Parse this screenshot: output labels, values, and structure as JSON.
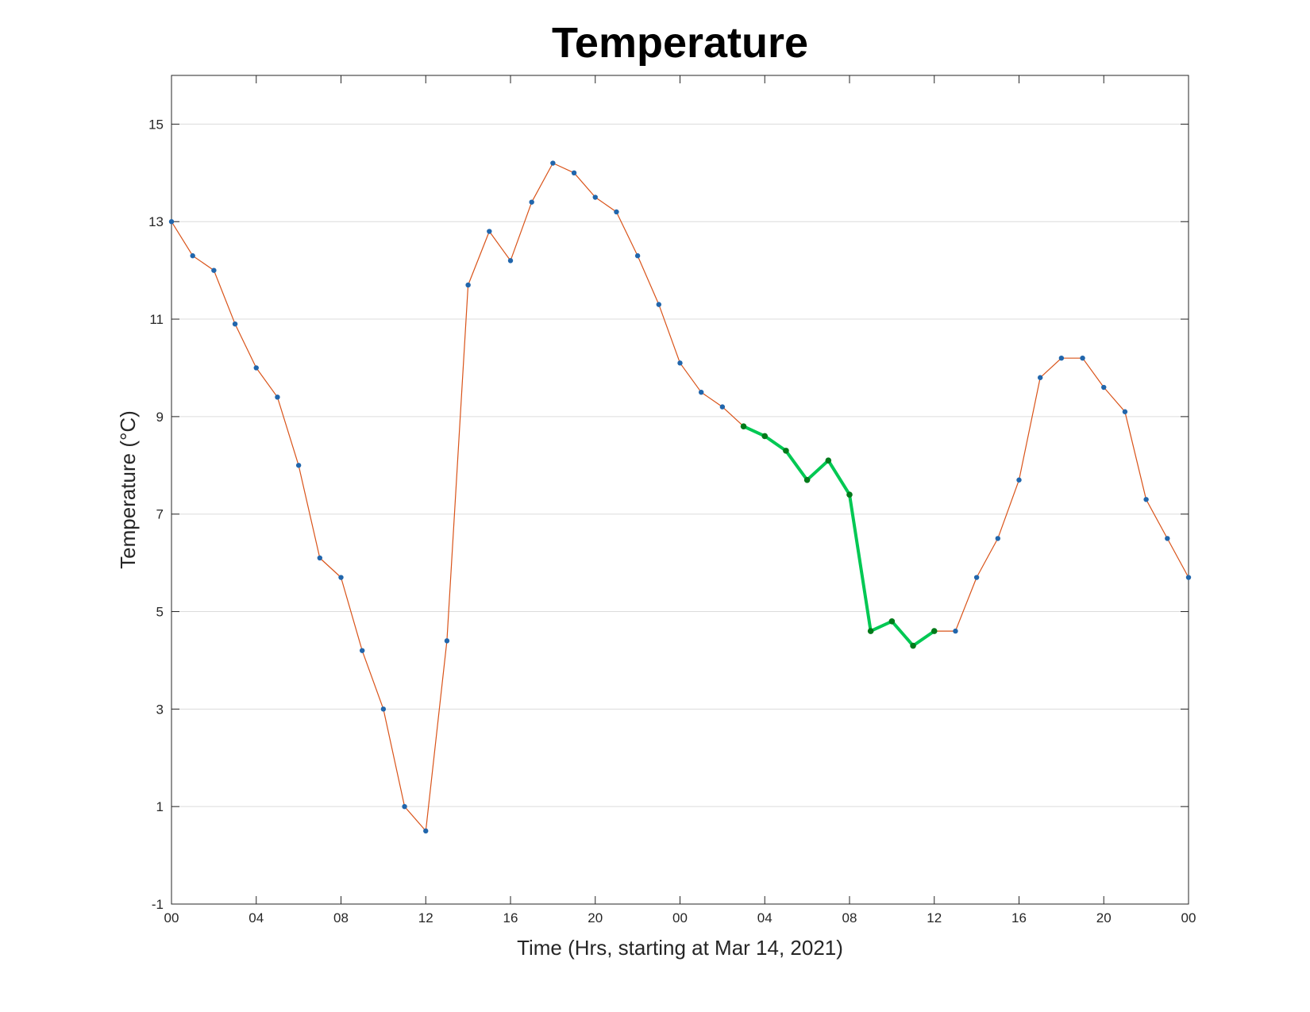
{
  "chart_data": {
    "type": "line",
    "title": "Temperature",
    "xlabel": "Time (Hrs, starting at Mar 14, 2021)",
    "ylabel": "Temperature (°C)",
    "xlim": [
      0,
      48
    ],
    "ylim": [
      -1,
      16
    ],
    "x_ticks": [
      0,
      4,
      8,
      12,
      16,
      20,
      24,
      28,
      32,
      36,
      40,
      44,
      48
    ],
    "x_tick_labels": [
      "00",
      "04",
      "08",
      "12",
      "16",
      "20",
      "00",
      "04",
      "08",
      "12",
      "16",
      "20",
      "00"
    ],
    "y_ticks": [
      -1,
      1,
      3,
      5,
      7,
      9,
      11,
      13,
      15
    ],
    "y_tick_labels": [
      "-1",
      "1",
      "3",
      "5",
      "7",
      "9",
      "11",
      "13",
      "15"
    ],
    "grid": "horizontal",
    "series": [
      {
        "color": "#d95319",
        "marker_color": "#2166ac",
        "x": [
          0,
          1,
          2,
          3,
          4,
          5,
          6,
          7,
          8,
          9,
          10,
          11,
          12,
          13,
          14,
          15,
          16,
          17,
          18,
          19,
          20,
          21,
          22,
          23,
          24,
          25,
          26,
          27,
          28,
          29,
          30,
          31,
          32,
          33,
          34,
          35,
          36,
          37,
          38,
          39,
          40,
          41,
          42,
          43,
          44,
          45,
          46,
          47,
          48
        ],
        "values": [
          13.0,
          12.3,
          12.0,
          10.9,
          10.0,
          9.4,
          8.0,
          6.1,
          5.7,
          4.2,
          3.0,
          1.0,
          0.5,
          4.4,
          11.7,
          12.8,
          12.2,
          13.4,
          14.2,
          14.0,
          13.5,
          13.2,
          12.3,
          11.3,
          10.1,
          9.5,
          9.2,
          8.8,
          8.6,
          8.3,
          7.7,
          8.1,
          7.4,
          4.6,
          4.8,
          4.3,
          4.6,
          4.6,
          5.7,
          6.5,
          7.7,
          9.8,
          10.2,
          10.2,
          9.6,
          9.1,
          7.3,
          6.5,
          5.7
        ]
      },
      {
        "color": "#00c853",
        "marker_color": "#007a1a",
        "x": [
          27,
          28,
          29,
          30,
          31,
          32,
          33,
          34,
          35,
          36
        ],
        "values": [
          8.8,
          8.6,
          8.3,
          7.7,
          8.1,
          7.4,
          4.6,
          4.8,
          4.3,
          4.6
        ]
      }
    ]
  }
}
